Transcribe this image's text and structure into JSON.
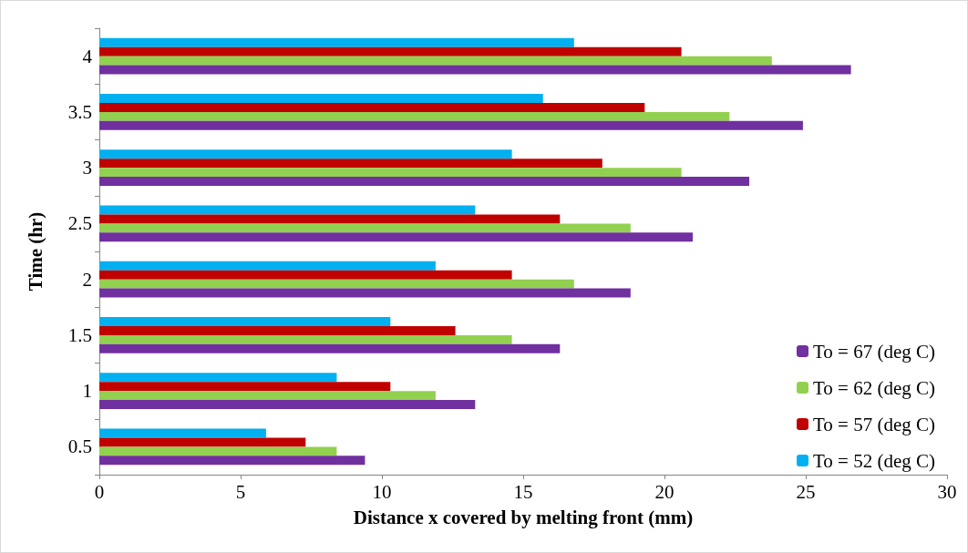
{
  "chart_data": {
    "type": "bar",
    "orientation": "horizontal",
    "xlabel": "Distance x covered by melting front (mm)",
    "ylabel": "Time (hr)",
    "categories": [
      "4",
      "3.5",
      "3",
      "2.5",
      "2",
      "1.5",
      "1",
      "0.5"
    ],
    "series": [
      {
        "name": "To = 52 (deg C)",
        "color": "#00b0f0",
        "values": [
          16.8,
          15.7,
          14.6,
          13.3,
          11.9,
          10.3,
          8.4,
          5.9
        ]
      },
      {
        "name": "To = 57 (deg C)",
        "color": "#c00000",
        "values": [
          20.6,
          19.3,
          17.8,
          16.3,
          14.6,
          12.6,
          10.3,
          7.3
        ]
      },
      {
        "name": "To = 62 (deg C)",
        "color": "#92d050",
        "values": [
          23.8,
          22.3,
          20.6,
          18.8,
          16.8,
          14.6,
          11.9,
          8.4
        ]
      },
      {
        "name": "To = 67 (deg C)",
        "color": "#7030a0",
        "values": [
          26.6,
          24.9,
          23.0,
          21.0,
          18.8,
          16.3,
          13.3,
          9.4
        ]
      }
    ],
    "xlim": [
      0,
      30
    ],
    "xticks": [
      0,
      5,
      10,
      15,
      20,
      25,
      30
    ],
    "grid": false,
    "legend": "bottom right"
  }
}
